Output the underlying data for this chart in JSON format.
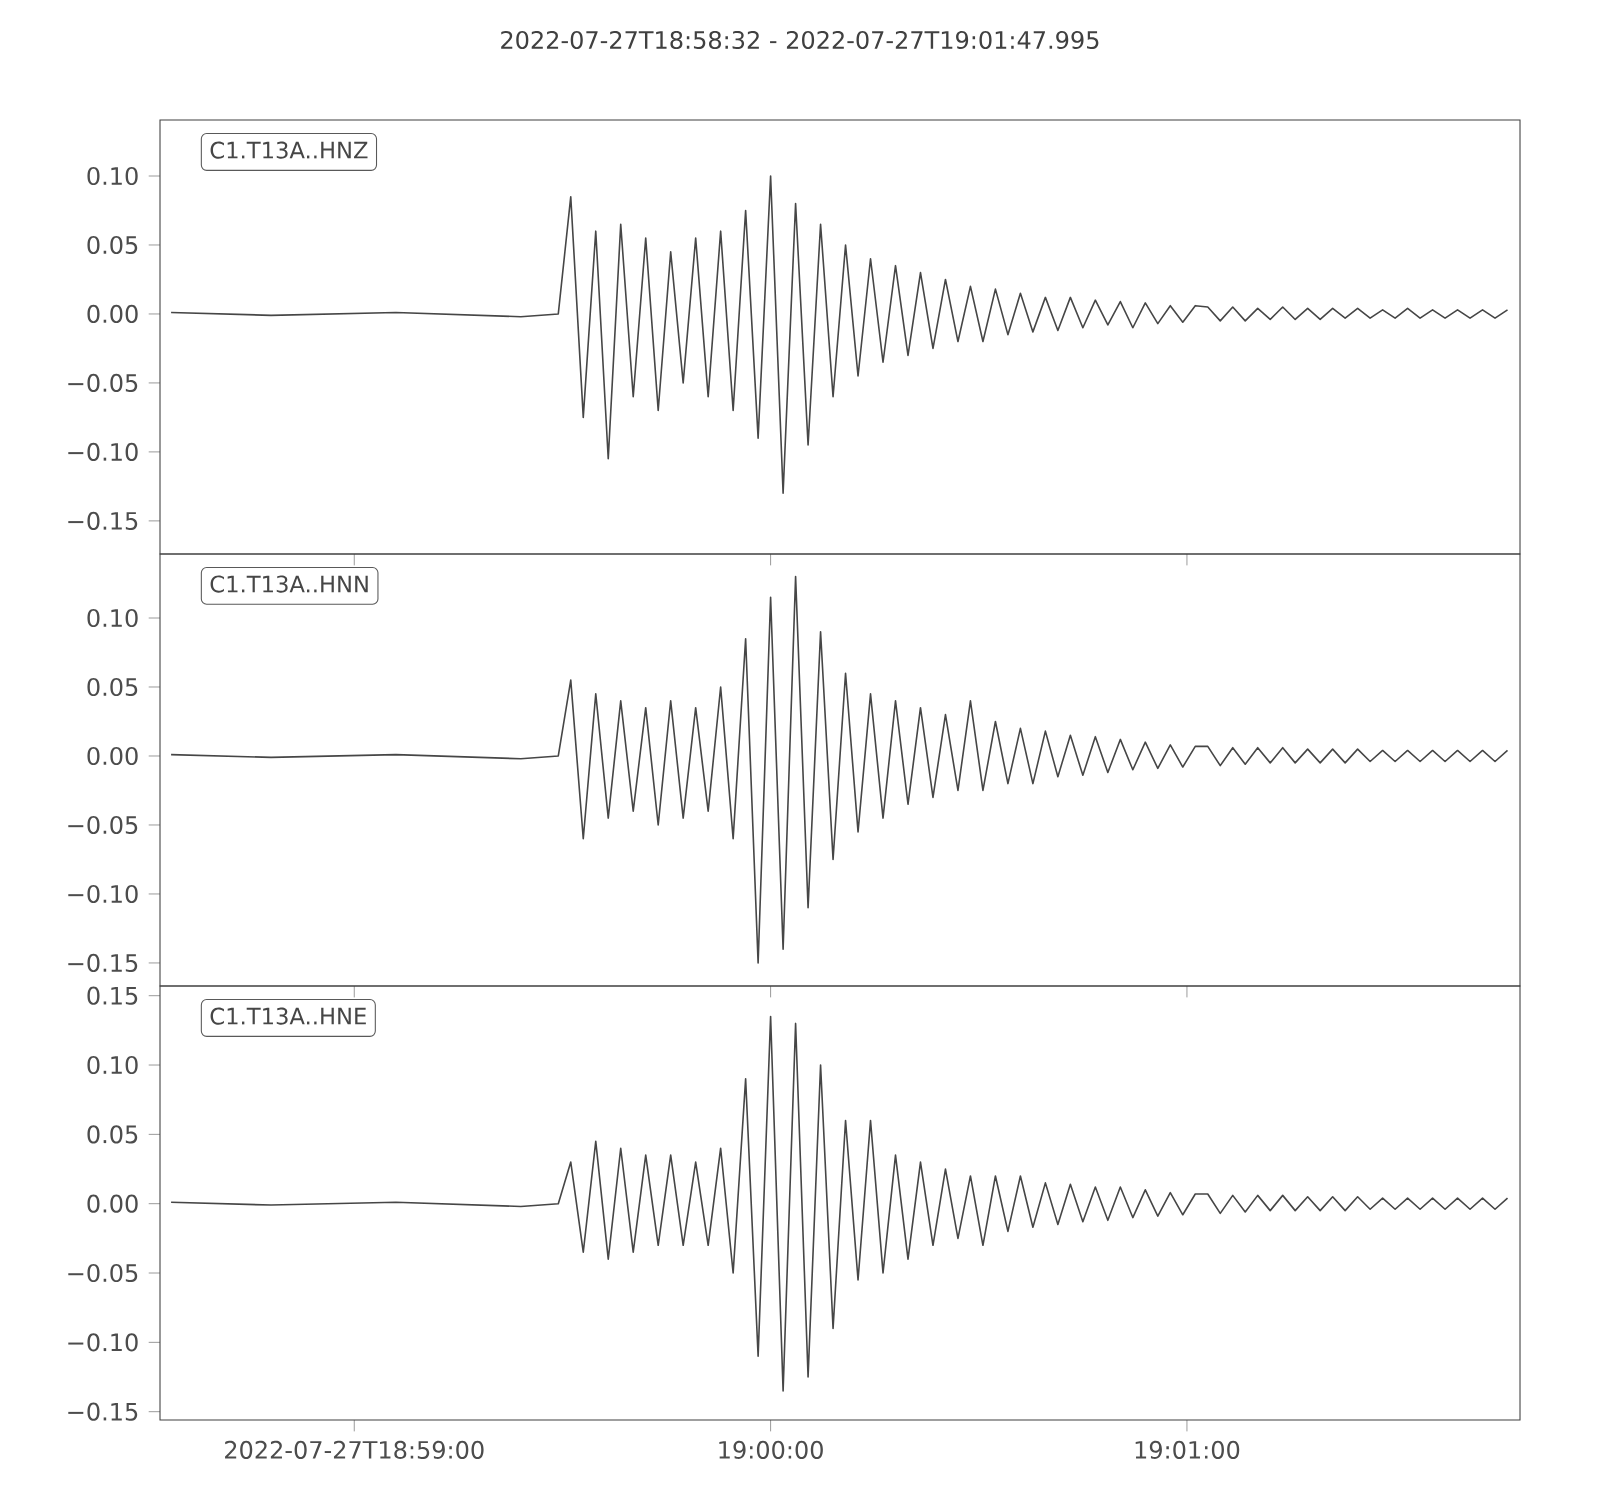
{
  "chart_data": [
    {
      "type": "line",
      "title": "2022-07-27T18:58:32  -  2022-07-27T19:01:47.995",
      "legend": "top left",
      "tick_labels": "y",
      "xlim": [
        18.975556,
        19.03
      ],
      "xticks": [
        {
          "value": 18.983333,
          "label": null
        },
        {
          "value": 19.0,
          "label": null
        },
        {
          "value": 19.016667,
          "label": null
        }
      ],
      "ylim": [
        -0.174,
        0.1406
      ],
      "yticks": [
        {
          "value": -0.15,
          "label": "−0.15"
        },
        {
          "value": -0.1,
          "label": "−0.10"
        },
        {
          "value": -0.05,
          "label": "−0.05"
        },
        {
          "value": 0,
          "label": "0.00"
        },
        {
          "value": 0.05,
          "label": "0.05"
        },
        {
          "value": 0.1,
          "label": "0.10"
        }
      ],
      "x": [
        18.976,
        18.98,
        18.985,
        18.99,
        18.9915,
        18.992,
        18.9925,
        18.993,
        18.9935,
        18.994,
        18.9945,
        18.995,
        18.9955,
        18.996,
        18.9965,
        18.997,
        18.9975,
        18.998,
        18.9985,
        18.999,
        18.9995,
        19.0,
        19.0005,
        19.001,
        19.0015,
        19.002,
        19.0025,
        19.003,
        19.0035,
        19.004,
        19.0045,
        19.005,
        19.0055,
        19.006,
        19.0065,
        19.007,
        19.0075,
        19.008,
        19.0085,
        19.009,
        19.0095,
        19.01,
        19.0105,
        19.011,
        19.0115,
        19.012,
        19.0125,
        19.013,
        19.0135,
        19.014,
        19.0145,
        19.015,
        19.0155,
        19.016,
        19.0165,
        19.017,
        19.0175,
        19.018,
        19.0185,
        19.019,
        19.0195,
        19.02,
        19.0205,
        19.021,
        19.0215,
        19.022,
        19.0225,
        19.023,
        19.0235,
        19.024,
        19.0245,
        19.025,
        19.0255,
        19.026,
        19.0265,
        19.027,
        19.0275,
        19.028,
        19.0285,
        19.029,
        19.0295
      ],
      "series": [
        {
          "name": "C1.T13A..HNZ",
          "color": "#464646",
          "values": [
            0.001,
            -0.001,
            0.001,
            -0.002,
            0.0,
            0.085,
            -0.075,
            0.06,
            -0.105,
            0.065,
            -0.06,
            0.055,
            -0.07,
            0.045,
            -0.05,
            0.055,
            -0.06,
            0.06,
            -0.07,
            0.075,
            -0.09,
            0.1,
            -0.13,
            0.08,
            -0.095,
            0.065,
            -0.06,
            0.05,
            -0.045,
            0.04,
            -0.035,
            0.035,
            -0.03,
            0.03,
            -0.025,
            0.025,
            -0.02,
            0.02,
            -0.02,
            0.018,
            -0.015,
            0.015,
            -0.013,
            0.012,
            -0.012,
            0.012,
            -0.01,
            0.01,
            -0.008,
            0.009,
            -0.01,
            0.008,
            -0.007,
            0.006,
            -0.006,
            0.006,
            0.005,
            -0.005,
            0.005,
            -0.005,
            0.004,
            -0.004,
            0.005,
            -0.004,
            0.004,
            -0.004,
            0.004,
            -0.003,
            0.004,
            -0.003,
            0.003,
            -0.003,
            0.004,
            -0.003,
            0.003,
            -0.003,
            0.003,
            -0.003,
            0.003,
            -0.003,
            0.003
          ]
        }
      ]
    },
    {
      "type": "line",
      "legend": "top left",
      "tick_labels": "y",
      "xlim": [
        18.975556,
        19.03
      ],
      "xticks": [
        {
          "value": 18.983333,
          "label": null
        },
        {
          "value": 19.0,
          "label": null
        },
        {
          "value": 19.016667,
          "label": null
        }
      ],
      "ylim": [
        -0.1667,
        0.1464
      ],
      "yticks": [
        {
          "value": -0.15,
          "label": "−0.15"
        },
        {
          "value": -0.1,
          "label": "−0.10"
        },
        {
          "value": -0.05,
          "label": "−0.05"
        },
        {
          "value": 0,
          "label": "0.00"
        },
        {
          "value": 0.05,
          "label": "0.05"
        },
        {
          "value": 0.1,
          "label": "0.10"
        }
      ],
      "x": [
        18.976,
        18.98,
        18.985,
        18.99,
        18.9915,
        18.992,
        18.9925,
        18.993,
        18.9935,
        18.994,
        18.9945,
        18.995,
        18.9955,
        18.996,
        18.9965,
        18.997,
        18.9975,
        18.998,
        18.9985,
        18.999,
        18.9995,
        19.0,
        19.0005,
        19.001,
        19.0015,
        19.002,
        19.0025,
        19.003,
        19.0035,
        19.004,
        19.0045,
        19.005,
        19.0055,
        19.006,
        19.0065,
        19.007,
        19.0075,
        19.008,
        19.0085,
        19.009,
        19.0095,
        19.01,
        19.0105,
        19.011,
        19.0115,
        19.012,
        19.0125,
        19.013,
        19.0135,
        19.014,
        19.0145,
        19.015,
        19.0155,
        19.016,
        19.0165,
        19.017,
        19.0175,
        19.018,
        19.0185,
        19.019,
        19.0195,
        19.02,
        19.0205,
        19.021,
        19.0215,
        19.022,
        19.0225,
        19.023,
        19.0235,
        19.024,
        19.0245,
        19.025,
        19.0255,
        19.026,
        19.0265,
        19.027,
        19.0275,
        19.028,
        19.0285,
        19.029,
        19.0295
      ],
      "series": [
        {
          "name": "C1.T13A..HNN",
          "color": "#464646",
          "values": [
            0.001,
            -0.001,
            0.001,
            -0.002,
            0.0,
            0.055,
            -0.06,
            0.045,
            -0.045,
            0.04,
            -0.04,
            0.035,
            -0.05,
            0.04,
            -0.045,
            0.035,
            -0.04,
            0.05,
            -0.06,
            0.085,
            -0.15,
            0.115,
            -0.14,
            0.13,
            -0.11,
            0.09,
            -0.075,
            0.06,
            -0.055,
            0.045,
            -0.045,
            0.04,
            -0.035,
            0.035,
            -0.03,
            0.03,
            -0.025,
            0.04,
            -0.025,
            0.025,
            -0.02,
            0.02,
            -0.02,
            0.018,
            -0.015,
            0.015,
            -0.014,
            0.014,
            -0.012,
            0.012,
            -0.01,
            0.01,
            -0.009,
            0.008,
            -0.008,
            0.007,
            0.007,
            -0.007,
            0.006,
            -0.006,
            0.006,
            -0.005,
            0.006,
            -0.005,
            0.005,
            -0.005,
            0.005,
            -0.005,
            0.005,
            -0.004,
            0.004,
            -0.004,
            0.004,
            -0.004,
            0.004,
            -0.004,
            0.004,
            -0.004,
            0.004,
            -0.004,
            0.004
          ]
        }
      ]
    },
    {
      "type": "line",
      "legend": "top left",
      "xlim": [
        18.975556,
        19.03
      ],
      "xticks": [
        {
          "value": 18.983333,
          "label": "2022-07-27T18:59:00"
        },
        {
          "value": 19.0,
          "label": "19:00:00"
        },
        {
          "value": 19.016667,
          "label": "19:01:00"
        }
      ],
      "ylim": [
        -0.156,
        0.157
      ],
      "yticks": [
        {
          "value": -0.15,
          "label": "−0.15"
        },
        {
          "value": -0.1,
          "label": "−0.10"
        },
        {
          "value": -0.05,
          "label": "−0.05"
        },
        {
          "value": 0,
          "label": "0.00"
        },
        {
          "value": 0.05,
          "label": "0.05"
        },
        {
          "value": 0.1,
          "label": "0.10"
        },
        {
          "value": 0.15,
          "label": "0.15"
        }
      ],
      "x": [
        18.976,
        18.98,
        18.985,
        18.99,
        18.9915,
        18.992,
        18.9925,
        18.993,
        18.9935,
        18.994,
        18.9945,
        18.995,
        18.9955,
        18.996,
        18.9965,
        18.997,
        18.9975,
        18.998,
        18.9985,
        18.999,
        18.9995,
        19.0,
        19.0005,
        19.001,
        19.0015,
        19.002,
        19.0025,
        19.003,
        19.0035,
        19.004,
        19.0045,
        19.005,
        19.0055,
        19.006,
        19.0065,
        19.007,
        19.0075,
        19.008,
        19.0085,
        19.009,
        19.0095,
        19.01,
        19.0105,
        19.011,
        19.0115,
        19.012,
        19.0125,
        19.013,
        19.0135,
        19.014,
        19.0145,
        19.015,
        19.0155,
        19.016,
        19.0165,
        19.017,
        19.0175,
        19.018,
        19.0185,
        19.019,
        19.0195,
        19.02,
        19.0205,
        19.021,
        19.0215,
        19.022,
        19.0225,
        19.023,
        19.0235,
        19.024,
        19.0245,
        19.025,
        19.0255,
        19.026,
        19.0265,
        19.027,
        19.0275,
        19.028,
        19.0285,
        19.029,
        19.0295
      ],
      "series": [
        {
          "name": "C1.T13A..HNE",
          "color": "#464646",
          "values": [
            0.001,
            -0.001,
            0.001,
            -0.002,
            0.0,
            0.03,
            -0.035,
            0.045,
            -0.04,
            0.04,
            -0.035,
            0.035,
            -0.03,
            0.035,
            -0.03,
            0.03,
            -0.03,
            0.04,
            -0.05,
            0.09,
            -0.11,
            0.135,
            -0.135,
            0.13,
            -0.125,
            0.1,
            -0.09,
            0.06,
            -0.055,
            0.06,
            -0.05,
            0.035,
            -0.04,
            0.03,
            -0.03,
            0.025,
            -0.025,
            0.02,
            -0.03,
            0.02,
            -0.02,
            0.02,
            -0.017,
            0.015,
            -0.015,
            0.014,
            -0.013,
            0.012,
            -0.012,
            0.012,
            -0.01,
            0.01,
            -0.009,
            0.008,
            -0.008,
            0.007,
            0.007,
            -0.007,
            0.006,
            -0.006,
            0.006,
            -0.005,
            0.006,
            -0.005,
            0.005,
            -0.005,
            0.005,
            -0.005,
            0.005,
            -0.004,
            0.004,
            -0.004,
            0.004,
            -0.004,
            0.004,
            -0.004,
            0.004,
            -0.004,
            0.004,
            -0.004,
            0.004
          ]
        }
      ]
    }
  ]
}
